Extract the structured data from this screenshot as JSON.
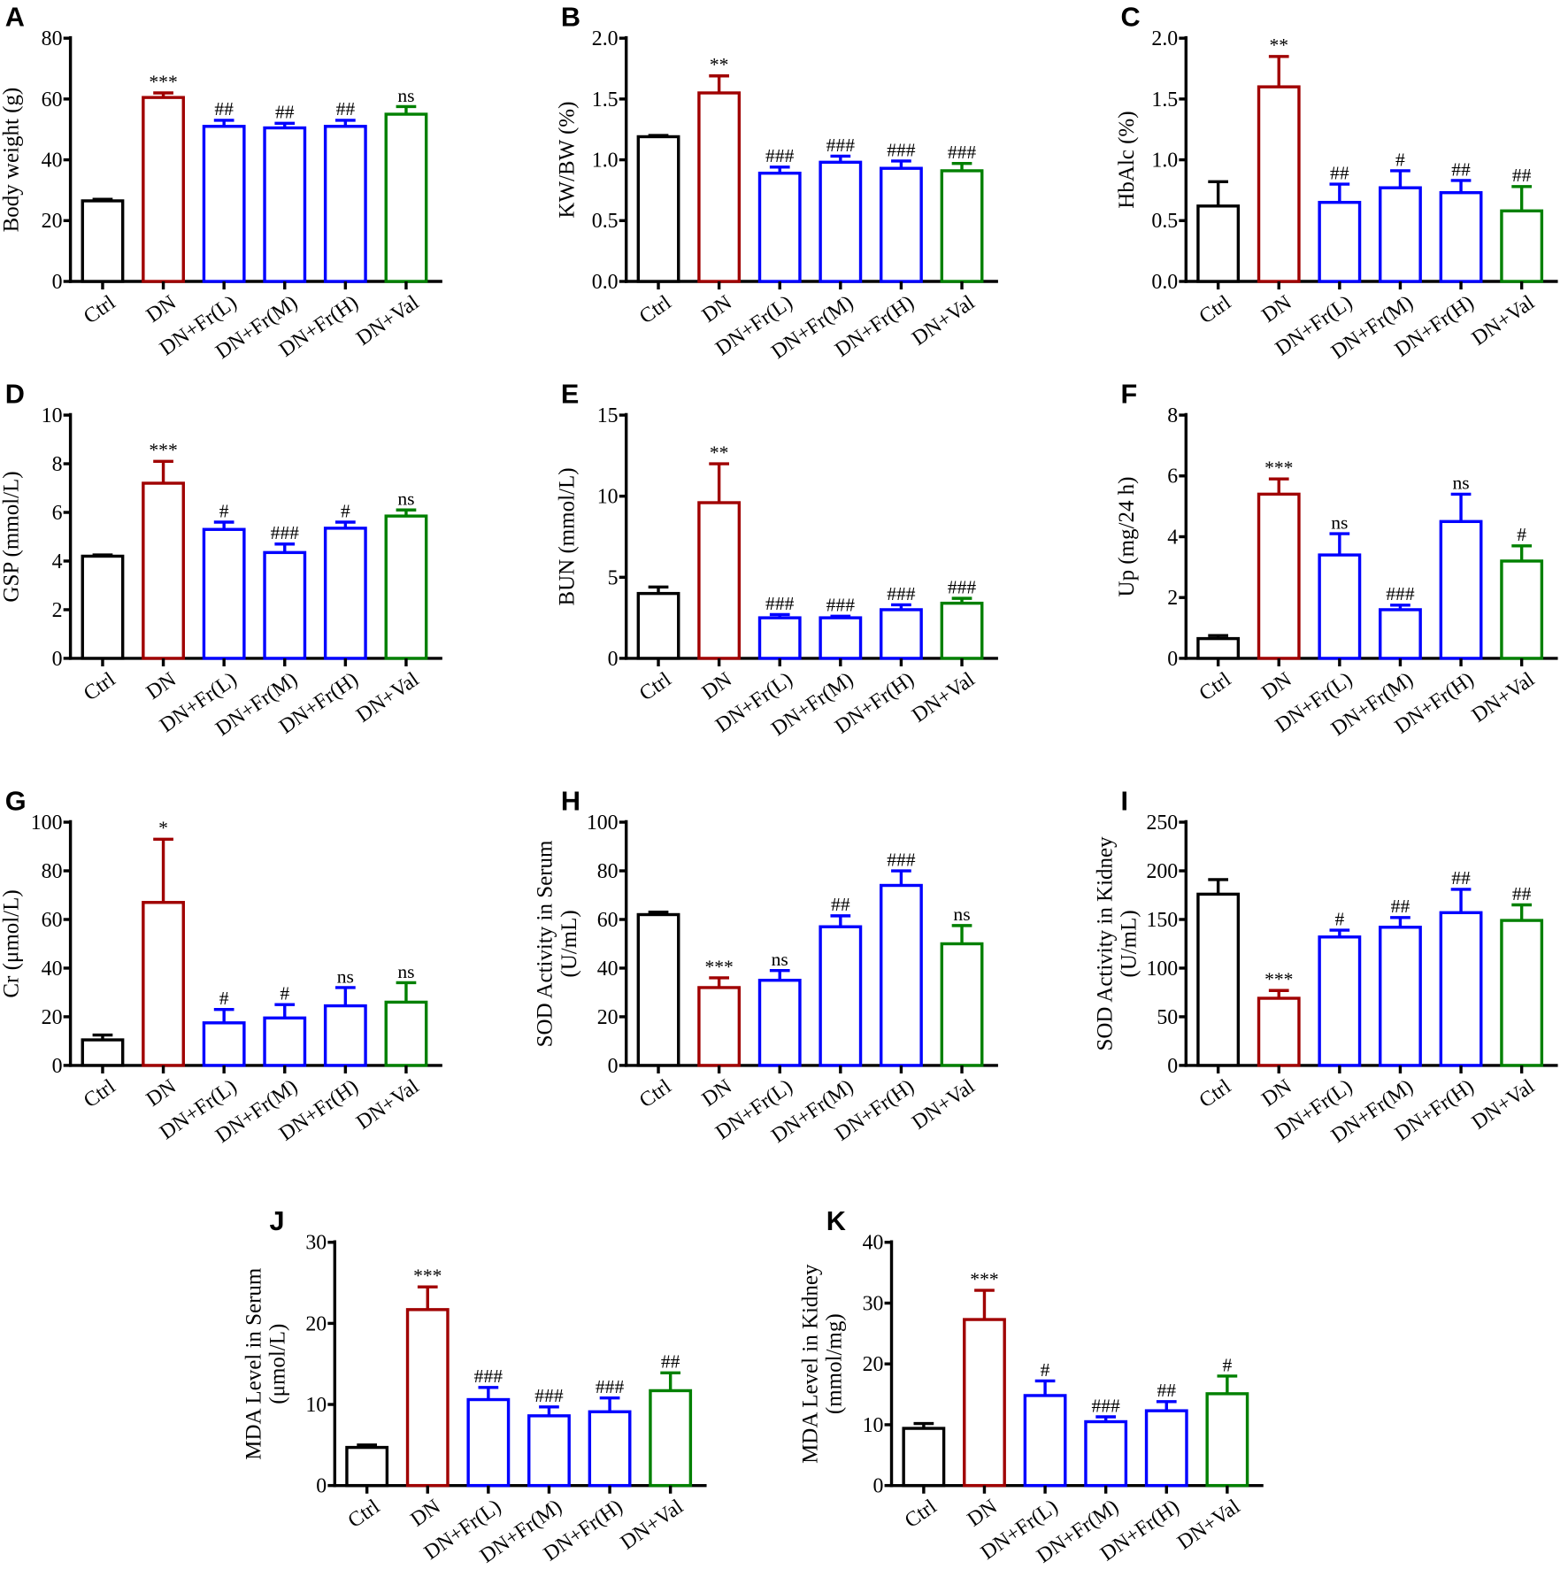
{
  "colors": {
    "Ctrl": "#000000",
    "DN": "#a00000",
    "Fr": "#0000ff",
    "Val": "#008000"
  },
  "chart_data": [
    {
      "panel": "A",
      "type": "bar",
      "ylabel": [
        "Body weight (g)"
      ],
      "ylim": [
        0,
        80
      ],
      "yticks": [
        0,
        20,
        40,
        60,
        80
      ],
      "categories": [
        "Ctrl",
        "DN",
        "DN+Fr(L)",
        "DN+Fr(M)",
        "DN+Fr(H)",
        "DN+Val"
      ],
      "values": [
        26.5,
        60.5,
        51,
        50.5,
        51,
        55
      ],
      "errors": [
        0.5,
        1.5,
        2,
        1.5,
        2,
        2.5
      ],
      "annotations": [
        "",
        "***",
        "##",
        "##",
        "##",
        "ns"
      ]
    },
    {
      "panel": "B",
      "type": "bar",
      "ylabel": [
        "KW/BW (%)"
      ],
      "ylim": [
        0,
        2
      ],
      "yticks": [
        "0.0",
        "0.5",
        "1.0",
        "1.5",
        "2.0"
      ],
      "categories": [
        "Ctrl",
        "DN",
        "DN+Fr(L)",
        "DN+Fr(M)",
        "DN+Fr(H)",
        "DN+Val"
      ],
      "values": [
        1.19,
        1.55,
        0.89,
        0.98,
        0.93,
        0.91
      ],
      "errors": [
        0.01,
        0.14,
        0.05,
        0.05,
        0.06,
        0.06
      ],
      "annotations": [
        "",
        "**",
        "###",
        "###",
        "###",
        "###"
      ]
    },
    {
      "panel": "C",
      "type": "bar",
      "ylabel": [
        "HbAlc (%)"
      ],
      "ylim": [
        0,
        2
      ],
      "yticks": [
        "0.0",
        "0.5",
        "1.0",
        "1.5",
        "2.0"
      ],
      "categories": [
        "Ctrl",
        "DN",
        "DN+Fr(L)",
        "DN+Fr(M)",
        "DN+Fr(H)",
        "DN+Val"
      ],
      "values": [
        0.62,
        1.6,
        0.65,
        0.77,
        0.73,
        0.58
      ],
      "errors": [
        0.2,
        0.25,
        0.15,
        0.14,
        0.1,
        0.2
      ],
      "annotations": [
        "",
        "**",
        "##",
        "#",
        "##",
        "##"
      ]
    },
    {
      "panel": "D",
      "type": "bar",
      "ylabel": [
        "GSP (mmol/L)"
      ],
      "ylim": [
        0,
        10
      ],
      "yticks": [
        0,
        2,
        4,
        6,
        8,
        10
      ],
      "categories": [
        "Ctrl",
        "DN",
        "DN+Fr(L)",
        "DN+Fr(M)",
        "DN+Fr(H)",
        "DN+Val"
      ],
      "values": [
        4.2,
        7.2,
        5.3,
        4.35,
        5.35,
        5.85
      ],
      "errors": [
        0.05,
        0.9,
        0.3,
        0.35,
        0.25,
        0.25
      ],
      "annotations": [
        "",
        "***",
        "#",
        "###",
        "#",
        "ns"
      ]
    },
    {
      "panel": "E",
      "type": "bar",
      "ylabel": [
        "BUN (mmol/L)"
      ],
      "ylim": [
        0,
        15
      ],
      "yticks": [
        0,
        5,
        10,
        15
      ],
      "categories": [
        "Ctrl",
        "DN",
        "DN+Fr(L)",
        "DN+Fr(M)",
        "DN+Fr(H)",
        "DN+Val"
      ],
      "values": [
        4.0,
        9.6,
        2.5,
        2.5,
        3.0,
        3.4
      ],
      "errors": [
        0.4,
        2.4,
        0.2,
        0.1,
        0.3,
        0.3
      ],
      "annotations": [
        "",
        "**",
        "###",
        "###",
        "###",
        "###"
      ]
    },
    {
      "panel": "F",
      "type": "bar",
      "ylabel": [
        "Up (mg/24 h)"
      ],
      "ylim": [
        0,
        8
      ],
      "yticks": [
        0,
        2,
        4,
        6,
        8
      ],
      "categories": [
        "Ctrl",
        "DN",
        "DN+Fr(L)",
        "DN+Fr(M)",
        "DN+Fr(H)",
        "DN+Val"
      ],
      "values": [
        0.65,
        5.4,
        3.4,
        1.6,
        4.5,
        3.2
      ],
      "errors": [
        0.1,
        0.5,
        0.7,
        0.15,
        0.9,
        0.5
      ],
      "annotations": [
        "",
        "***",
        "ns",
        "###",
        "ns",
        "#"
      ]
    },
    {
      "panel": "G",
      "type": "bar",
      "ylabel": [
        "Cr (μmol/L)"
      ],
      "ylim": [
        0,
        100
      ],
      "yticks": [
        0,
        20,
        40,
        60,
        80,
        100
      ],
      "categories": [
        "Ctrl",
        "DN",
        "DN+Fr(L)",
        "DN+Fr(M)",
        "DN+Fr(H)",
        "DN+Val"
      ],
      "values": [
        10.5,
        67,
        17.5,
        19.5,
        24.5,
        26
      ],
      "errors": [
        2,
        26,
        5.5,
        5.5,
        7.5,
        8
      ],
      "annotations": [
        "",
        "*",
        "#",
        "#",
        "ns",
        "ns"
      ]
    },
    {
      "panel": "H",
      "type": "bar",
      "ylabel": [
        "SOD Activity in Serum",
        "(U/mL)"
      ],
      "ylim": [
        0,
        100
      ],
      "yticks": [
        0,
        20,
        40,
        60,
        80,
        100
      ],
      "categories": [
        "Ctrl",
        "DN",
        "DN+Fr(L)",
        "DN+Fr(M)",
        "DN+Fr(H)",
        "DN+Val"
      ],
      "values": [
        62,
        32,
        35,
        57,
        74,
        50
      ],
      "errors": [
        1,
        4,
        4,
        4.5,
        6,
        7.5
      ],
      "annotations": [
        "",
        "***",
        "ns",
        "##",
        "###",
        "ns"
      ]
    },
    {
      "panel": "I",
      "type": "bar",
      "ylabel": [
        "SOD Activity in Kidney",
        "(U/mL)"
      ],
      "ylim": [
        0,
        250
      ],
      "yticks": [
        0,
        50,
        100,
        150,
        200,
        250
      ],
      "categories": [
        "Ctrl",
        "DN",
        "DN+Fr(L)",
        "DN+Fr(M)",
        "DN+Fr(H)",
        "DN+Val"
      ],
      "values": [
        176,
        69,
        132,
        142,
        157,
        149
      ],
      "errors": [
        15,
        8,
        7,
        10,
        24,
        16
      ],
      "annotations": [
        "",
        "***",
        "#",
        "##",
        "##",
        "##"
      ]
    },
    {
      "panel": "J",
      "type": "bar",
      "ylabel": [
        "MDA Level in Serum",
        "(μmol/L)"
      ],
      "ylim": [
        0,
        30
      ],
      "yticks": [
        0,
        10,
        20,
        30
      ],
      "categories": [
        "Ctrl",
        "DN",
        "DN+Fr(L)",
        "DN+Fr(M)",
        "DN+Fr(H)",
        "DN+Val"
      ],
      "values": [
        4.7,
        21.7,
        10.6,
        8.6,
        9.1,
        11.7
      ],
      "errors": [
        0.3,
        2.8,
        1.5,
        1.1,
        1.7,
        2.2
      ],
      "annotations": [
        "",
        "***",
        "###",
        "###",
        "###",
        "##"
      ]
    },
    {
      "panel": "K",
      "type": "bar",
      "ylabel": [
        "MDA Level in Kidney",
        "(mmol/mg)"
      ],
      "ylim": [
        0,
        40
      ],
      "yticks": [
        0,
        10,
        20,
        30,
        40
      ],
      "categories": [
        "Ctrl",
        "DN",
        "DN+Fr(L)",
        "DN+Fr(M)",
        "DN+Fr(H)",
        "DN+Val"
      ],
      "values": [
        9.4,
        27.3,
        14.8,
        10.5,
        12.3,
        15.1
      ],
      "errors": [
        0.8,
        4.8,
        2.4,
        0.8,
        1.5,
        2.9
      ],
      "annotations": [
        "",
        "***",
        "#",
        "###",
        "##",
        "#"
      ]
    }
  ]
}
